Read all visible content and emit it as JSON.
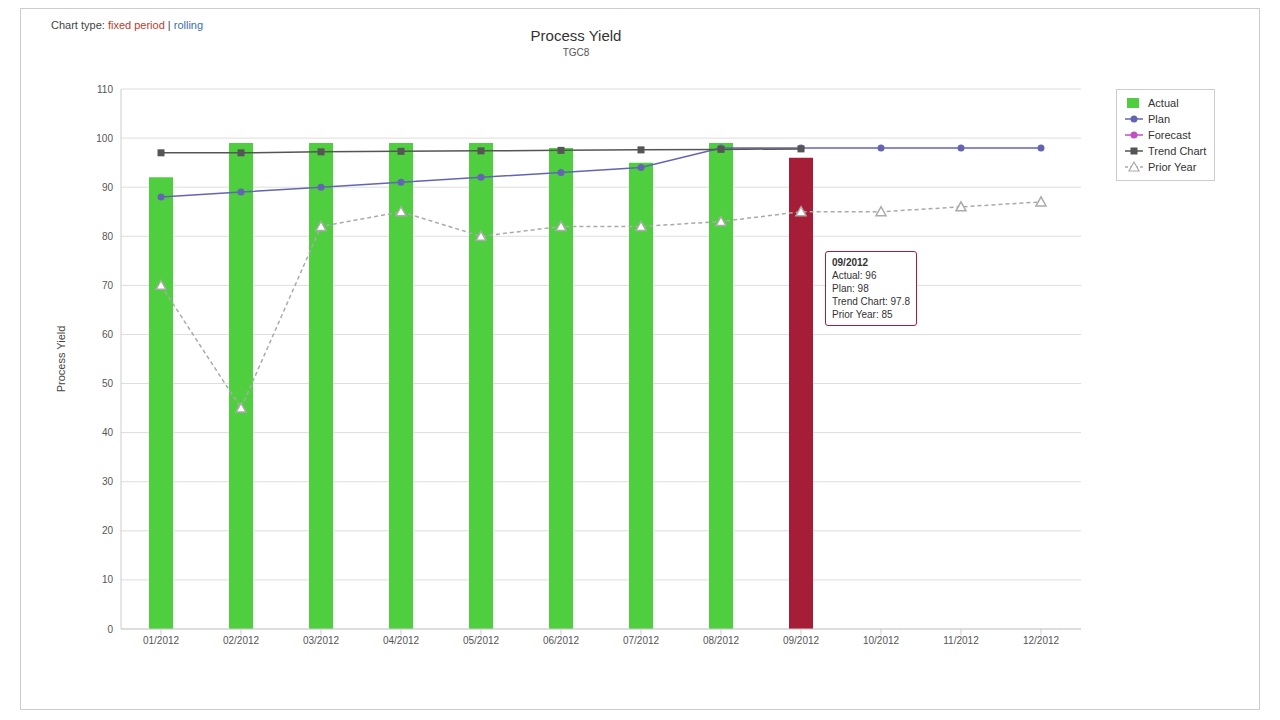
{
  "chart_data": {
    "type": "bar",
    "title": "Process Yield",
    "subtitle": "TGC8",
    "y_label": "Process Yield",
    "chart_type_switch": {
      "label": "Chart type:",
      "options": [
        "fixed period",
        "rolling"
      ],
      "separator": "|"
    },
    "categories": [
      "01/2012",
      "02/2012",
      "03/2012",
      "04/2012",
      "05/2012",
      "06/2012",
      "07/2012",
      "08/2012",
      "09/2012",
      "10/2012",
      "11/2012",
      "12/2012"
    ],
    "series": [
      {
        "name": "Actual",
        "type": "bar",
        "colors": [
          "#4fcf3f",
          "#4fcf3f",
          "#4fcf3f",
          "#4fcf3f",
          "#4fcf3f",
          "#4fcf3f",
          "#4fcf3f",
          "#4fcf3f",
          "#a51d36",
          "#4fcf3f",
          "#4fcf3f",
          "#4fcf3f"
        ],
        "color": "#4fcf3f",
        "values": [
          92,
          99,
          99,
          99,
          99,
          98,
          95,
          99,
          96,
          null,
          null,
          null
        ]
      },
      {
        "name": "Plan",
        "type": "line",
        "color": "#6464b4",
        "marker": "circle",
        "line_style": "solid",
        "values": [
          88,
          89,
          90,
          91,
          92,
          93,
          94,
          98,
          98,
          98,
          98,
          98
        ]
      },
      {
        "name": "Forecast",
        "type": "line",
        "color": "#c050c0",
        "marker": "circle",
        "line_style": "solid",
        "values": [
          null,
          null,
          null,
          null,
          null,
          null,
          null,
          null,
          null,
          null,
          null,
          null
        ]
      },
      {
        "name": "Trend Chart",
        "type": "line",
        "color": "#555555",
        "marker": "square",
        "line_style": "solid",
        "values": [
          97,
          97,
          97.2,
          97.3,
          97.4,
          97.5,
          97.6,
          97.7,
          97.8,
          null,
          null,
          null
        ]
      },
      {
        "name": "Prior Year",
        "type": "line",
        "color": "#aaaaaa",
        "marker": "triangle",
        "line_style": "dashed",
        "values": [
          70,
          45,
          82,
          85,
          80,
          82,
          82,
          83,
          85,
          85,
          86,
          87
        ]
      }
    ],
    "ylim": [
      0,
      110
    ],
    "yticks": [
      0,
      10,
      20,
      30,
      40,
      50,
      60,
      70,
      80,
      90,
      100,
      110
    ],
    "grid": true,
    "legend": "right",
    "tooltip": {
      "category": "09/2012",
      "lines": [
        "Actual: 96",
        "Plan: 98",
        "Trend Chart: 97.8",
        "Prior Year: 85"
      ]
    }
  }
}
